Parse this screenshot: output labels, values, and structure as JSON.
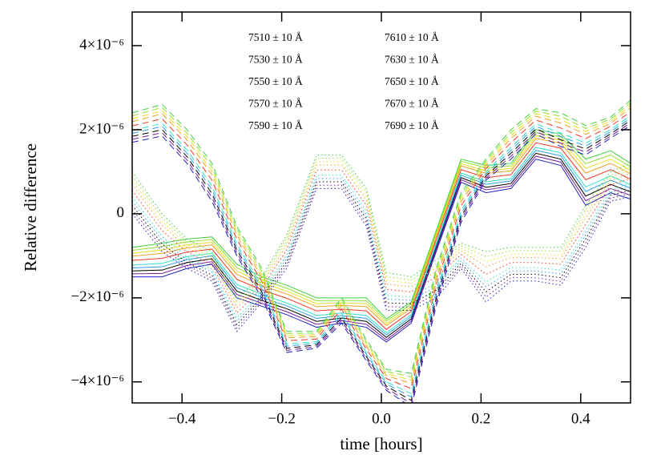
{
  "chart_data": {
    "type": "line",
    "xlabel": "time [hours]",
    "ylabel": "Relative difference",
    "x": [
      -0.5,
      -0.44,
      -0.39,
      -0.34,
      -0.29,
      -0.24,
      -0.19,
      -0.13,
      -0.08,
      -0.03,
      0.01,
      0.06,
      0.11,
      0.16,
      0.21,
      0.26,
      0.31,
      0.36,
      0.41,
      0.46,
      0.5
    ],
    "xlim": [
      -0.5,
      0.5
    ],
    "xticks": [
      {
        "value": -0.4,
        "label": "−0.4"
      },
      {
        "value": -0.2,
        "label": "−0.2"
      },
      {
        "value": 0,
        "label": "0.0"
      },
      0.2,
      0.4
    ],
    "ylim": [
      -4.5e-06,
      4.8e-06
    ],
    "yticks": [
      {
        "value": -4e-06,
        "label": "−4×10⁻⁶"
      },
      {
        "value": -2e-06,
        "label": "−2×10⁻⁶"
      },
      0,
      {
        "value": 2e-06,
        "label": "2×10⁻⁶"
      },
      {
        "value": 4e-06,
        "label": "4×10⁻⁶"
      }
    ],
    "grid": false,
    "series": [
      {
        "name": "7510 ± 10 Å",
        "color": "#000000",
        "values": [
          -1.36e-06,
          -1.34e-06,
          -1.16e-06,
          -1.07e-06,
          -1.84e-06,
          -2.06e-06,
          -2.26e-06,
          -2.56e-06,
          -2.48e-06,
          -2.56e-06,
          -2.94e-06,
          -2.5e-06,
          -8e-07,
          8.6e-07,
          6.3e-07,
          7.2e-07,
          1.44e-06,
          1.3e-06,
          4.2e-07,
          7e-07,
          5.2e-07
        ],
        "dashed_values": [
          1.84e-06,
          2e-06,
          1.36e-06,
          4.8e-07,
          -8.6e-07,
          -1.86e-06,
          -3.2e-06,
          -3.12e-06,
          -2.48e-06,
          -3.4e-06,
          -4.1e-06,
          -4.44e-06,
          -2.02e-06,
          -6e-08,
          9e-07,
          1.44e-06,
          2.02e-06,
          1.76e-06,
          1.54e-06,
          1.9e-06,
          2.22e-06
        ],
        "dotted_values": [
          2e-07,
          -7.2e-07,
          -1.16e-06,
          -1.46e-06,
          -2.64e-06,
          -1.98e-06,
          -1.14e-06,
          7.6e-07,
          7.6e-07,
          -1.2e-07,
          -2.12e-06,
          -2.14e-06,
          -1.82e-06,
          -1.18e-06,
          -1.86e-06,
          -1.44e-06,
          -1.44e-06,
          -1.52e-06,
          -6e-07,
          4.4e-07,
          5.6e-07
        ]
      },
      {
        "name": "7530 ± 10 Å",
        "color": "#7a1fa0",
        "values": [
          -1.43e-06,
          -1.42e-06,
          -1.23e-06,
          -1.14e-06,
          -1.92e-06,
          -2.13e-06,
          -2.33e-06,
          -2.63e-06,
          -2.54e-06,
          -2.63e-06,
          -3e-06,
          -2.55e-06,
          -8.5e-07,
          8.1e-07,
          5.7e-07,
          6.6e-07,
          1.37e-06,
          1.23e-06,
          3.1e-07,
          6e-07,
          4.4e-07
        ],
        "dashed_values": [
          1.77e-06,
          1.93e-06,
          1.28e-06,
          3.9e-07,
          -9.3e-07,
          -1.93e-06,
          -3.25e-06,
          -3.16e-06,
          -2.54e-06,
          -3.45e-06,
          -4.15e-06,
          -4.52e-06,
          -2.11e-06,
          -1.3e-07,
          8.5e-07,
          1.37e-06,
          1.96e-06,
          1.68e-06,
          1.47e-06,
          1.85e-06,
          2.16e-06
        ],
        "dotted_values": [
          1e-07,
          -8.1e-07,
          -1.23e-06,
          -1.53e-06,
          -2.72e-06,
          -2.04e-06,
          -1.22e-06,
          6.8e-07,
          6.8e-07,
          -2.1e-07,
          -2.21e-06,
          -2.22e-06,
          -1.91e-06,
          -1.24e-06,
          -1.98e-06,
          -1.52e-06,
          -1.52e-06,
          -1.61e-06,
          -7e-07,
          3.7e-07,
          4.8e-07
        ]
      },
      {
        "name": "7550 ± 10 Å",
        "color": "#2020c0",
        "values": [
          -1.5e-06,
          -1.5e-06,
          -1.3e-06,
          -1.2e-06,
          -2e-06,
          -2.2e-06,
          -2.4e-06,
          -2.7e-06,
          -2.6e-06,
          -2.7e-06,
          -3.05e-06,
          -2.6e-06,
          -9e-07,
          7.5e-07,
          5e-07,
          6e-07,
          1.3e-06,
          1.15e-06,
          2e-07,
          5e-07,
          3.5e-07
        ],
        "dashed_values": [
          1.7e-06,
          1.85e-06,
          1.2e-06,
          3e-07,
          -1e-06,
          -2e-06,
          -3.3e-06,
          -3.2e-06,
          -2.6e-06,
          -3.5e-06,
          -4.2e-06,
          -4.6e-06,
          -2.2e-06,
          -2e-07,
          8e-07,
          1.3e-06,
          1.9e-06,
          1.6e-06,
          1.4e-06,
          1.8e-06,
          2.1e-06
        ],
        "dotted_values": [
          0.0,
          -9e-07,
          -1.3e-06,
          -1.6e-06,
          -2.8e-06,
          -2.1e-06,
          -1.3e-06,
          6e-07,
          6e-07,
          -3e-07,
          -2.3e-06,
          -2.3e-06,
          -2e-06,
          -1.3e-06,
          -2.1e-06,
          -1.6e-06,
          -1.6e-06,
          -1.7e-06,
          -8e-07,
          3e-07,
          4e-07
        ]
      },
      {
        "name": "7570 ± 10 Å",
        "color": "#2aa0f0",
        "values": [
          -1.29e-06,
          -1.26e-06,
          -1.09e-06,
          -1e-06,
          -1.76e-06,
          -1.99e-06,
          -2.19e-06,
          -2.49e-06,
          -2.42e-06,
          -2.49e-06,
          -2.88e-06,
          -2.45e-06,
          -7.5e-07,
          9.2e-07,
          7e-07,
          7.8e-07,
          1.51e-06,
          1.38e-06,
          5.3e-07,
          8e-07,
          6.1e-07
        ],
        "dashed_values": [
          1.91e-06,
          2.08e-06,
          1.44e-06,
          5.7e-07,
          -7.9e-07,
          -1.79e-06,
          -3.15e-06,
          -3.08e-06,
          -2.42e-06,
          -3.35e-06,
          -4.05e-06,
          -4.36e-06,
          -1.93e-06,
          1e-08,
          9.5e-07,
          1.51e-06,
          2.08e-06,
          1.84e-06,
          1.61e-06,
          1.95e-06,
          2.28e-06
        ],
        "dotted_values": [
          3e-07,
          -6.3e-07,
          -1.09e-06,
          -1.39e-06,
          -2.56e-06,
          -1.92e-06,
          -1.06e-06,
          8.4e-07,
          8.4e-07,
          -3e-08,
          -2.03e-06,
          -2.06e-06,
          -1.73e-06,
          -1.12e-06,
          -1.74e-06,
          -1.36e-06,
          -1.36e-06,
          -1.43e-06,
          -5e-07,
          5.1e-07,
          6.4e-07
        ]
      },
      {
        "name": "7590 ± 10 Å",
        "color": "#30e0c8",
        "values": [
          -1.22e-06,
          -1.18e-06,
          -1.02e-06,
          -9.4e-07,
          -1.68e-06,
          -1.92e-06,
          -2.12e-06,
          -2.42e-06,
          -2.36e-06,
          -2.42e-06,
          -2.83e-06,
          -2.4e-06,
          -7e-07,
          9.7e-07,
          7.6e-07,
          8.4e-07,
          1.58e-06,
          1.45e-06,
          6.4e-07,
          9e-07,
          6.9e-07
        ],
        "dashed_values": [
          1.98e-06,
          2.15e-06,
          1.52e-06,
          6.6e-07,
          -7.2e-07,
          -1.72e-06,
          -3.1e-06,
          -3.04e-06,
          -2.36e-06,
          -3.3e-06,
          -4e-06,
          -4.28e-06,
          -1.84e-06,
          8e-08,
          1e-06,
          1.58e-06,
          2.14e-06,
          1.92e-06,
          1.68e-06,
          2e-06,
          2.34e-06
        ],
        "dotted_values": [
          4e-07,
          -5.4e-07,
          -1.02e-06,
          -1.32e-06,
          -2.48e-06,
          -1.86e-06,
          -9.8e-07,
          9.2e-07,
          9.2e-07,
          6e-08,
          -1.94e-06,
          -1.98e-06,
          -1.64e-06,
          -1.06e-06,
          -1.62e-06,
          -1.28e-06,
          -1.28e-06,
          -1.34e-06,
          -4e-07,
          5.8e-07,
          7.2e-07
        ]
      },
      {
        "name": "7610 ± 10 Å",
        "color": "#40d040",
        "values": [
          -8e-07,
          -7e-07,
          -6e-07,
          -5.5e-07,
          -1.2e-06,
          -1.5e-06,
          -1.7e-06,
          -2e-06,
          -2e-06,
          -2e-06,
          -2.5e-06,
          -2.1e-06,
          -4e-07,
          1.3e-06,
          1.15e-06,
          1.2e-06,
          2e-06,
          1.9e-06,
          1.3e-06,
          1.5e-06,
          1.2e-06
        ],
        "dashed_values": [
          2.4e-06,
          2.6e-06,
          2e-06,
          1.2e-06,
          -3e-07,
          -1.3e-06,
          -2.8e-06,
          -2.8e-06,
          -2e-06,
          -3e-06,
          -3.7e-06,
          -3.8e-06,
          -1.3e-06,
          5e-07,
          1.3e-06,
          2e-06,
          2.5e-06,
          2.4e-06,
          2.1e-06,
          2.3e-06,
          2.7e-06
        ],
        "dotted_values": [
          1e-06,
          0.0,
          -6e-07,
          -9e-07,
          -2e-06,
          -1.5e-06,
          -5e-07,
          1.4e-06,
          1.4e-06,
          6e-07,
          -1.4e-06,
          -1.5e-06,
          -1.1e-06,
          -7e-07,
          -9e-07,
          -8e-07,
          -8e-07,
          -8e-07,
          2e-07,
          1e-06,
          1.2e-06
        ]
      },
      {
        "name": "7630 ± 10 Å",
        "color": "#90e030",
        "values": [
          -8.7e-07,
          -7.8e-07,
          -6.7e-07,
          -6.1e-07,
          -1.28e-06,
          -1.57e-06,
          -1.77e-06,
          -2.07e-06,
          -2.06e-06,
          -2.07e-06,
          -2.55e-06,
          -2.15e-06,
          -4.5e-07,
          1.25e-06,
          1.09e-06,
          1.14e-06,
          1.93e-06,
          1.83e-06,
          1.19e-06,
          1.4e-06,
          1.12e-06
        ],
        "dashed_values": [
          2.33e-06,
          2.53e-06,
          1.92e-06,
          1.11e-06,
          -3.7e-07,
          -1.37e-06,
          -2.85e-06,
          -2.84e-06,
          -2.06e-06,
          -3.05e-06,
          -3.75e-06,
          -3.88e-06,
          -1.39e-06,
          4.3e-07,
          1.25e-06,
          1.93e-06,
          2.44e-06,
          2.32e-06,
          2.03e-06,
          2.25e-06,
          2.64e-06
        ],
        "dotted_values": [
          9e-07,
          -9e-08,
          -6.7e-07,
          -9.7e-07,
          -2.08e-06,
          -1.56e-06,
          -5.8e-07,
          1.32e-06,
          1.32e-06,
          5.1e-07,
          -1.49e-06,
          -1.58e-06,
          -1.19e-06,
          -7.6e-07,
          -1.02e-06,
          -8.8e-07,
          -8.8e-07,
          -8.9e-07,
          1e-07,
          9.3e-07,
          1.12e-06
        ]
      },
      {
        "name": "7650 ± 10 Å",
        "color": "#e8e020",
        "values": [
          -9.4e-07,
          -8.6e-07,
          -7.4e-07,
          -6.8e-07,
          -1.36e-06,
          -1.64e-06,
          -1.84e-06,
          -2.14e-06,
          -2.12e-06,
          -2.14e-06,
          -2.61e-06,
          -2.2e-06,
          -5e-07,
          1.19e-06,
          1.02e-06,
          1.08e-06,
          1.86e-06,
          1.75e-06,
          1.08e-06,
          1.3e-06,
          1.03e-06
        ],
        "dashed_values": [
          2.26e-06,
          2.45e-06,
          1.84e-06,
          1.02e-06,
          -4.4e-07,
          -1.44e-06,
          -2.9e-06,
          -2.88e-06,
          -2.12e-06,
          -3.1e-06,
          -3.8e-06,
          -3.96e-06,
          -1.48e-06,
          3.6e-07,
          1.2e-06,
          1.86e-06,
          2.38e-06,
          2.24e-06,
          1.96e-06,
          2.2e-06,
          2.58e-06
        ],
        "dotted_values": [
          8e-07,
          -1.8e-07,
          -7.4e-07,
          -1.04e-06,
          -2.16e-06,
          -1.62e-06,
          -6.6e-07,
          1.24e-06,
          1.24e-06,
          4.2e-07,
          -1.58e-06,
          -1.66e-06,
          -1.28e-06,
          -8.2e-07,
          -1.14e-06,
          -9.6e-07,
          -9.6e-07,
          -9.8e-07,
          0.0,
          8.6e-07,
          1.04e-06
        ]
      },
      {
        "name": "7670 ± 10 Å",
        "color": "#f0a020",
        "values": [
          -1.01e-06,
          -9.4e-07,
          -8.1e-07,
          -7.4e-07,
          -1.44e-06,
          -1.71e-06,
          -1.91e-06,
          -2.21e-06,
          -2.18e-06,
          -2.21e-06,
          -2.66e-06,
          -2.25e-06,
          -5.5e-07,
          1.14e-06,
          9.6e-07,
          1.02e-06,
          1.79e-06,
          1.68e-06,
          9.7e-07,
          1.2e-06,
          9.5e-07
        ],
        "dashed_values": [
          2.19e-06,
          2.38e-06,
          1.76e-06,
          9.3e-07,
          -5.1e-07,
          -1.51e-06,
          -2.95e-06,
          -2.92e-06,
          -2.18e-06,
          -3.15e-06,
          -3.85e-06,
          -4.04e-06,
          -1.57e-06,
          2.9e-07,
          1.15e-06,
          1.79e-06,
          2.32e-06,
          2.16e-06,
          1.89e-06,
          2.15e-06,
          2.52e-06
        ],
        "dotted_values": [
          7e-07,
          -2.7e-07,
          -8.1e-07,
          -1.11e-06,
          -2.24e-06,
          -1.68e-06,
          -7.4e-07,
          1.16e-06,
          1.16e-06,
          3.3e-07,
          -1.67e-06,
          -1.74e-06,
          -1.37e-06,
          -8.8e-07,
          -1.26e-06,
          -1.04e-06,
          -1.04e-06,
          -1.07e-06,
          -1e-07,
          7.9e-07,
          9.6e-07
        ]
      },
      {
        "name": "7690 ± 10 Å",
        "color": "#f03a20",
        "values": [
          -1.11e-06,
          -1.06e-06,
          -9.1e-07,
          -8.4e-07,
          -1.56e-06,
          -1.81e-06,
          -2.01e-06,
          -2.31e-06,
          -2.27e-06,
          -2.31e-06,
          -2.75e-06,
          -2.32e-06,
          -6.2e-07,
          1.05e-06,
          8.6e-07,
          9.3e-07,
          1.69e-06,
          1.56e-06,
          8.1e-07,
          1.05e-06,
          8.2e-07
        ],
        "dashed_values": [
          2.09e-06,
          2.26e-06,
          1.64e-06,
          8e-07,
          -6.1e-07,
          -1.61e-06,
          -3.02e-06,
          -2.98e-06,
          -2.27e-06,
          -3.22e-06,
          -3.92e-06,
          -4.16e-06,
          -1.7e-06,
          1.9e-07,
          1.08e-06,
          1.69e-06,
          2.23e-06,
          2.04e-06,
          1.79e-06,
          2.08e-06,
          2.43e-06
        ],
        "dotted_values": [
          5.5e-07,
          -4e-07,
          -9.1e-07,
          -1.21e-06,
          -2.36e-06,
          -1.77e-06,
          -8.6e-07,
          1.04e-06,
          1.04e-06,
          2e-07,
          -1.8e-06,
          -1.86e-06,
          -1.5e-06,
          -9.7e-07,
          -1.44e-06,
          -1.16e-06,
          -1.16e-06,
          -1.2e-06,
          -2.5e-07,
          6.9e-07,
          8.4e-07
        ]
      }
    ]
  }
}
